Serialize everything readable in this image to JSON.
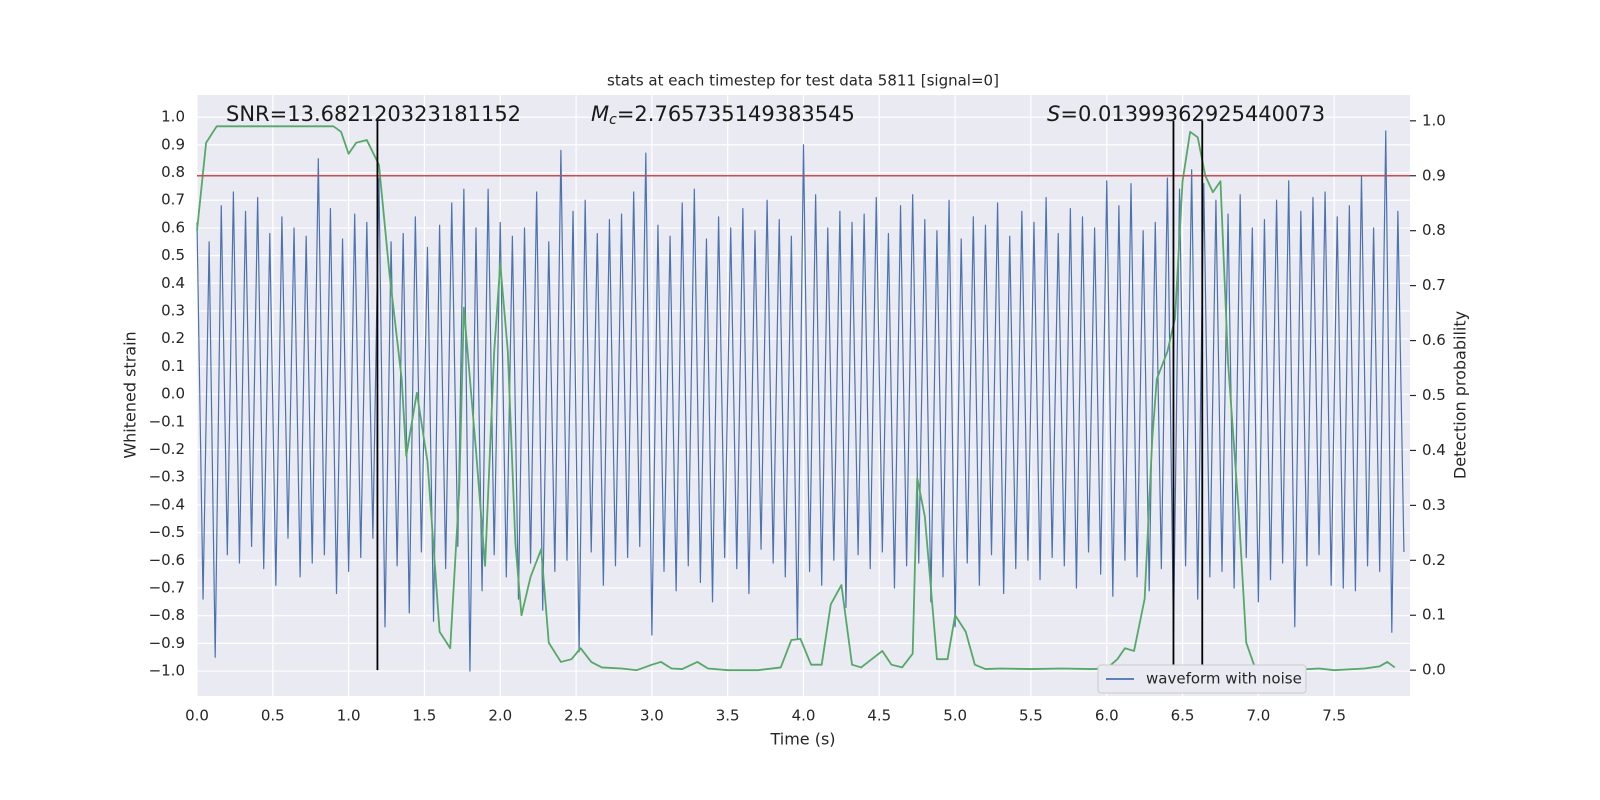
{
  "chart_data": {
    "type": "line",
    "title": "stats at each timestep for test data 5811 [signal=0]",
    "xlabel": "Time (s)",
    "ylabel": "Whitened strain",
    "y2label": "Detection probability",
    "xlim": [
      0,
      8.0
    ],
    "xticks": [
      {
        "value": 0,
        "label": "0.0"
      },
      0.5,
      {
        "value": 1,
        "label": "1.0"
      },
      1.5,
      {
        "value": 2,
        "label": "2.0"
      },
      2.5,
      {
        "value": 3,
        "label": "3.0"
      },
      3.5,
      {
        "value": 4,
        "label": "4.0"
      },
      4.5,
      {
        "value": 5,
        "label": "5.0"
      },
      5.5,
      {
        "value": 6,
        "label": "6.0"
      },
      6.5,
      {
        "value": 7,
        "label": "7.0"
      },
      7.5
    ],
    "ylim": [
      -1.09,
      1.08
    ],
    "yticks": [
      {
        "value": -1,
        "label": "−1.0"
      },
      {
        "value": -0.9,
        "label": "−0.9"
      },
      {
        "value": -0.8,
        "label": "−0.8"
      },
      {
        "value": -0.7,
        "label": "−0.7"
      },
      {
        "value": -0.6,
        "label": "−0.6"
      },
      {
        "value": -0.5,
        "label": "−0.5"
      },
      {
        "value": -0.4,
        "label": "−0.4"
      },
      {
        "value": -0.3,
        "label": "−0.3"
      },
      {
        "value": -0.2,
        "label": "−0.2"
      },
      {
        "value": -0.1,
        "label": "−0.1"
      },
      {
        "value": 0,
        "label": "0.0"
      },
      0.1,
      0.2,
      0.3,
      0.4,
      0.5,
      0.6,
      0.7,
      0.8,
      0.9,
      {
        "value": 1,
        "label": "1.0"
      }
    ],
    "y2lim": [
      -0.047,
      1.047
    ],
    "y2ticks": [
      {
        "value": 0,
        "label": "0.0"
      },
      0.1,
      0.2,
      0.3,
      0.4,
      0.5,
      0.6,
      0.7,
      0.8,
      0.9,
      {
        "value": 1,
        "label": "1.0"
      }
    ],
    "grid": true,
    "legend": "lower right",
    "series": [
      {
        "name": "waveform with noise",
        "color": "#4c72b0",
        "axis": "y",
        "x": [
          0,
          0.04,
          0.08,
          0.12,
          0.16,
          0.2,
          0.24,
          0.28,
          0.32,
          0.36,
          0.4,
          0.44,
          0.48,
          0.52,
          0.56,
          0.6,
          0.64,
          0.68,
          0.72,
          0.76,
          0.8,
          0.84,
          0.88,
          0.92,
          0.96,
          1.0,
          1.04,
          1.08,
          1.12,
          1.16,
          1.2,
          1.24,
          1.28,
          1.32,
          1.36,
          1.4,
          1.44,
          1.48,
          1.52,
          1.56,
          1.6,
          1.64,
          1.68,
          1.72,
          1.76,
          1.8,
          1.84,
          1.88,
          1.92,
          1.96,
          2.0,
          2.04,
          2.08,
          2.12,
          2.16,
          2.2,
          2.24,
          2.28,
          2.32,
          2.36,
          2.4,
          2.44,
          2.48,
          2.52,
          2.56,
          2.6,
          2.64,
          2.68,
          2.72,
          2.76,
          2.8,
          2.84,
          2.88,
          2.92,
          2.96,
          3.0,
          3.04,
          3.08,
          3.12,
          3.16,
          3.2,
          3.24,
          3.28,
          3.32,
          3.36,
          3.4,
          3.44,
          3.48,
          3.52,
          3.56,
          3.6,
          3.64,
          3.68,
          3.72,
          3.76,
          3.8,
          3.84,
          3.88,
          3.92,
          3.96,
          4.0,
          4.04,
          4.08,
          4.12,
          4.16,
          4.2,
          4.24,
          4.28,
          4.32,
          4.36,
          4.4,
          4.44,
          4.48,
          4.52,
          4.56,
          4.6,
          4.64,
          4.68,
          4.72,
          4.76,
          4.8,
          4.84,
          4.88,
          4.92,
          4.96,
          5.0,
          5.04,
          5.08,
          5.12,
          5.16,
          5.2,
          5.24,
          5.28,
          5.32,
          5.36,
          5.4,
          5.44,
          5.48,
          5.52,
          5.56,
          5.6,
          5.64,
          5.68,
          5.72,
          5.76,
          5.8,
          5.84,
          5.88,
          5.92,
          5.96,
          6.0,
          6.04,
          6.08,
          6.12,
          6.16,
          6.2,
          6.24,
          6.28,
          6.32,
          6.36,
          6.4,
          6.44,
          6.48,
          6.52,
          6.56,
          6.6,
          6.64,
          6.68,
          6.72,
          6.76,
          6.8,
          6.84,
          6.88,
          6.92,
          6.96,
          7.0,
          7.04,
          7.08,
          7.12,
          7.16,
          7.2,
          7.24,
          7.28,
          7.32,
          7.36,
          7.4,
          7.44,
          7.48,
          7.52,
          7.56,
          7.6,
          7.64,
          7.68,
          7.72,
          7.76,
          7.8,
          7.84,
          7.88,
          7.92,
          7.96
        ],
        "values": [
          0.62,
          -0.74,
          0.55,
          -0.95,
          0.68,
          -0.58,
          0.73,
          -0.61,
          0.66,
          -0.55,
          0.71,
          -0.63,
          0.58,
          -0.69,
          0.64,
          -0.52,
          0.6,
          -0.66,
          0.57,
          -0.61,
          0.85,
          -0.58,
          0.67,
          -0.72,
          0.56,
          -0.64,
          0.65,
          -0.59,
          0.62,
          -0.52,
          0.78,
          -0.84,
          0.55,
          -0.62,
          0.58,
          -0.79,
          0.64,
          -0.57,
          0.53,
          -0.82,
          0.61,
          -0.63,
          0.69,
          -0.55,
          0.74,
          -1.0,
          0.6,
          -0.71,
          0.74,
          -0.58,
          0.62,
          -0.66,
          0.57,
          -0.74,
          0.6,
          -0.61,
          0.73,
          -0.78,
          0.55,
          -0.64,
          0.88,
          -0.6,
          0.66,
          -0.93,
          0.7,
          -0.57,
          0.58,
          -0.69,
          0.63,
          -0.62,
          0.65,
          -0.59,
          0.73,
          -0.55,
          0.87,
          -0.87,
          0.61,
          -0.64,
          0.57,
          -0.71,
          0.69,
          -0.62,
          0.74,
          -0.68,
          0.56,
          -0.75,
          0.64,
          -0.59,
          0.6,
          -0.63,
          0.67,
          -0.72,
          0.59,
          -0.56,
          0.7,
          -0.61,
          0.63,
          -0.66,
          0.57,
          -0.88,
          0.9,
          -0.64,
          0.72,
          -0.69,
          0.6,
          -0.6,
          0.66,
          -0.77,
          0.62,
          -0.58,
          0.65,
          -0.63,
          0.71,
          -0.57,
          0.58,
          -0.7,
          0.68,
          -0.62,
          0.72,
          -0.61,
          0.63,
          -0.75,
          0.59,
          -0.66,
          0.7,
          -0.84,
          0.56,
          -0.61,
          0.64,
          -0.69,
          0.61,
          -0.58,
          0.69,
          -0.72,
          0.57,
          -0.63,
          0.66,
          -0.6,
          0.62,
          -0.67,
          0.71,
          -0.59,
          0.58,
          -0.62,
          0.67,
          -0.7,
          0.64,
          -0.57,
          0.6,
          -0.65,
          0.77,
          -0.73,
          0.68,
          -0.6,
          0.76,
          -0.66,
          0.59,
          -0.71,
          0.62,
          -0.63,
          0.78,
          -0.86,
          0.74,
          -0.62,
          0.81,
          -0.74,
          0.76,
          -0.66,
          0.7,
          -0.64,
          0.65,
          -0.7,
          0.72,
          -0.59,
          0.6,
          -0.75,
          0.63,
          -0.67,
          0.7,
          -0.61,
          0.77,
          -0.84,
          0.66,
          -0.62,
          0.71,
          -0.58,
          0.73,
          -0.69,
          0.64,
          -0.7,
          0.68,
          -0.71,
          0.79,
          -0.62,
          0.6,
          -0.64,
          0.95,
          -0.86,
          0.66,
          -0.57
        ]
      },
      {
        "color": "#55a868",
        "axis": "y2",
        "x": [
          0,
          0.06,
          0.13,
          0.5,
          0.9,
          0.95,
          1.0,
          1.05,
          1.12,
          1.2,
          1.27,
          1.35,
          1.38,
          1.45,
          1.52,
          1.6,
          1.67,
          1.73,
          1.76,
          1.84,
          1.9,
          1.96,
          2.0,
          2.05,
          2.1,
          2.14,
          2.2,
          2.27,
          2.32,
          2.4,
          2.47,
          2.53,
          2.6,
          2.67,
          2.8,
          2.9,
          3.0,
          3.06,
          3.13,
          3.2,
          3.3,
          3.37,
          3.5,
          3.7,
          3.85,
          3.92,
          3.98,
          4.05,
          4.12,
          4.18,
          4.25,
          4.32,
          4.38,
          4.45,
          4.52,
          4.58,
          4.65,
          4.72,
          4.75,
          4.8,
          4.88,
          4.95,
          5.0,
          5.07,
          5.13,
          5.2,
          5.3,
          5.5,
          5.7,
          5.9,
          6.0,
          6.07,
          6.12,
          6.18,
          6.25,
          6.3,
          6.33,
          6.4,
          6.45,
          6.5,
          6.55,
          6.6,
          6.65,
          6.7,
          6.75,
          6.8,
          6.87,
          6.92,
          6.98,
          7.2,
          7.4,
          7.5,
          7.7,
          7.8,
          7.85,
          7.9
        ],
        "values": [
          0.8,
          0.96,
          0.99,
          0.99,
          0.99,
          0.98,
          0.94,
          0.96,
          0.965,
          0.92,
          0.72,
          0.53,
          0.39,
          0.505,
          0.38,
          0.07,
          0.04,
          0.33,
          0.66,
          0.4,
          0.19,
          0.58,
          0.74,
          0.58,
          0.23,
          0.1,
          0.17,
          0.22,
          0.05,
          0.015,
          0.02,
          0.04,
          0.015,
          0.005,
          0.003,
          0.0,
          0.01,
          0.015,
          0.003,
          0.002,
          0.015,
          0.003,
          0.0,
          0.0,
          0.005,
          0.055,
          0.057,
          0.01,
          0.01,
          0.12,
          0.155,
          0.01,
          0.005,
          0.02,
          0.035,
          0.01,
          0.005,
          0.03,
          0.35,
          0.28,
          0.02,
          0.02,
          0.1,
          0.07,
          0.01,
          0.002,
          0.003,
          0.002,
          0.003,
          0.002,
          0.003,
          0.02,
          0.04,
          0.035,
          0.13,
          0.42,
          0.53,
          0.58,
          0.64,
          0.89,
          0.98,
          0.97,
          0.9,
          0.87,
          0.89,
          0.56,
          0.29,
          0.05,
          0.003,
          0.0,
          0.003,
          0.0,
          0.003,
          0.007,
          0.015,
          0.005
        ]
      }
    ],
    "vlines": {
      "x": [
        1.19,
        6.44,
        6.63
      ],
      "axis": "y2",
      "range": [
        0,
        1
      ],
      "color": "#000000"
    },
    "hline": {
      "value": 0.9,
      "axis": "y2",
      "color": "#c44e52"
    },
    "annotations": [
      {
        "text": "SNR=13.682120323181152"
      },
      {
        "symbol": "M",
        "subscript": "c",
        "text": "=2.765735149383545"
      },
      {
        "symbol": "S",
        "text": "=0.01399362925440073"
      }
    ]
  }
}
